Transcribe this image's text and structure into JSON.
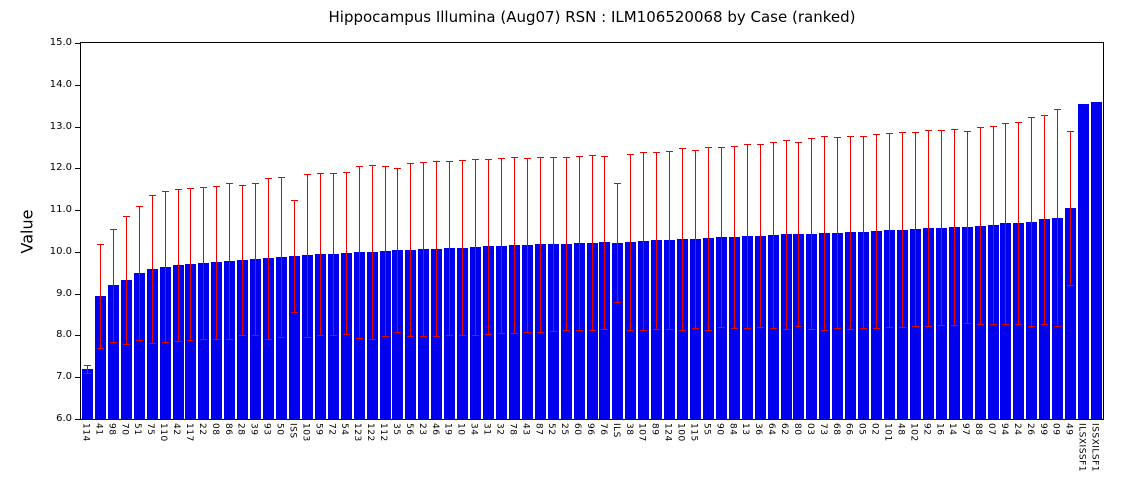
{
  "chart_data": {
    "type": "bar",
    "title": "Hippocampus Illumina (Aug07) RSN : ILM106520068 by Case (ranked)",
    "xlabel": "",
    "ylabel": "Value",
    "ylim": [
      6.0,
      15.0
    ],
    "ytick_values": [
      15,
      14,
      13,
      12,
      11,
      10,
      9,
      8,
      7,
      6
    ],
    "ytick_labels": [
      "15.0",
      "14.0",
      "13.0",
      "12.0",
      "11.0",
      "10.0",
      "9.0",
      "8.0",
      "7.0",
      "6.0"
    ],
    "grid": false,
    "legend": null,
    "bar_color": "#0000EE",
    "error_bar_color": "#EE0000",
    "categories": [
      "114",
      "41",
      "98",
      "70",
      "51",
      "75",
      "110",
      "42",
      "117",
      "22",
      "08",
      "86",
      "28",
      "39",
      "93",
      "50",
      "ISS",
      "103",
      "59",
      "72",
      "54",
      "123",
      "122",
      "112",
      "35",
      "56",
      "23",
      "46",
      "19",
      "10",
      "34",
      "31",
      "32",
      "78",
      "43",
      "87",
      "52",
      "25",
      "60",
      "96",
      "76",
      "ILS",
      "38",
      "107",
      "89",
      "124",
      "100",
      "115",
      "55",
      "90",
      "84",
      "13",
      "36",
      "64",
      "62",
      "80",
      "03",
      "73",
      "68",
      "66",
      "05",
      "02",
      "101",
      "48",
      "102",
      "92",
      "16",
      "14",
      "97",
      "88",
      "07",
      "94",
      "24",
      "26",
      "99",
      "09",
      "49",
      "ILSXISSF1",
      "ISSXILSF1"
    ],
    "values": [
      7.2,
      8.95,
      9.2,
      9.32,
      9.5,
      9.58,
      9.65,
      9.68,
      9.7,
      9.73,
      9.75,
      9.78,
      9.8,
      9.83,
      9.85,
      9.88,
      9.9,
      9.92,
      9.94,
      9.96,
      9.98,
      10.0,
      10.0,
      10.02,
      10.04,
      10.05,
      10.07,
      10.08,
      10.09,
      10.1,
      10.12,
      10.13,
      10.15,
      10.17,
      10.17,
      10.18,
      10.19,
      10.2,
      10.21,
      10.22,
      10.23,
      10.22,
      10.24,
      10.26,
      10.28,
      10.29,
      10.3,
      10.31,
      10.33,
      10.35,
      10.36,
      10.38,
      10.39,
      10.4,
      10.42,
      10.43,
      10.44,
      10.46,
      10.46,
      10.47,
      10.48,
      10.5,
      10.52,
      10.53,
      10.55,
      10.57,
      10.58,
      10.6,
      10.6,
      10.63,
      10.65,
      10.68,
      10.7,
      10.72,
      10.78,
      10.82,
      11.05,
      13.55,
      13.6
    ],
    "error_high": [
      7.3,
      10.2,
      10.55,
      10.85,
      11.1,
      11.35,
      11.45,
      11.5,
      11.52,
      11.55,
      11.58,
      11.65,
      11.6,
      11.65,
      11.78,
      11.8,
      11.25,
      11.87,
      11.88,
      11.9,
      11.92,
      12.05,
      12.08,
      12.05,
      12.0,
      12.12,
      12.15,
      12.18,
      12.18,
      12.2,
      12.22,
      12.22,
      12.24,
      12.28,
      12.25,
      12.28,
      12.28,
      12.28,
      12.3,
      12.32,
      12.3,
      11.65,
      12.35,
      12.38,
      12.4,
      12.42,
      12.48,
      12.44,
      12.52,
      12.5,
      12.54,
      12.58,
      12.58,
      12.62,
      12.68,
      12.64,
      12.72,
      12.78,
      12.74,
      12.78,
      12.78,
      12.82,
      12.84,
      12.86,
      12.88,
      12.92,
      12.92,
      12.94,
      12.9,
      12.98,
      13.02,
      13.08,
      13.12,
      13.22,
      13.28,
      13.42,
      12.9,
      null,
      null
    ],
    "error_low": [
      7.1,
      7.7,
      7.85,
      7.79,
      7.9,
      7.81,
      7.85,
      7.86,
      7.88,
      7.91,
      7.92,
      7.91,
      8.0,
      8.01,
      7.92,
      7.96,
      8.55,
      7.97,
      8.0,
      8.02,
      8.04,
      7.95,
      7.92,
      7.99,
      8.08,
      7.98,
      7.99,
      7.98,
      8.0,
      8.0,
      8.02,
      8.04,
      8.06,
      8.06,
      8.09,
      8.08,
      8.1,
      8.12,
      8.12,
      8.12,
      8.16,
      8.79,
      8.13,
      8.14,
      8.16,
      8.16,
      8.12,
      8.18,
      8.14,
      8.2,
      8.18,
      8.18,
      8.2,
      8.18,
      8.16,
      8.22,
      8.16,
      8.14,
      8.18,
      8.16,
      8.18,
      8.18,
      8.2,
      8.2,
      8.22,
      8.22,
      8.24,
      8.26,
      8.3,
      8.28,
      8.28,
      8.28,
      8.28,
      8.22,
      8.28,
      8.22,
      9.2,
      null,
      null
    ]
  }
}
